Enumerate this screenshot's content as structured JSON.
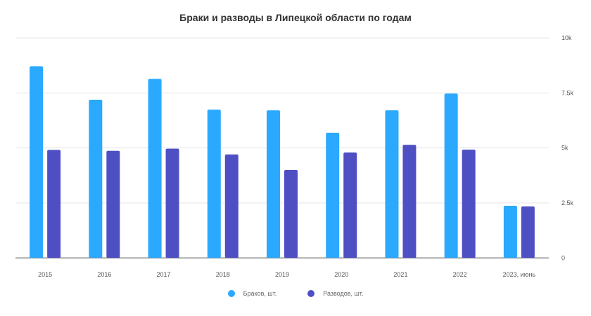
{
  "chart_data": {
    "type": "bar",
    "title": "Браки и разводы в Липецкой области по годам",
    "categories": [
      "2015",
      "2016",
      "2017",
      "2018",
      "2019",
      "2020",
      "2021",
      "2022",
      "2023, июнь"
    ],
    "series": [
      {
        "name": "Браков, шт.",
        "color": "#2aa9ff",
        "values": [
          8710,
          7190,
          8140,
          6740,
          6710,
          5690,
          6710,
          7470,
          2370
        ]
      },
      {
        "name": "Разводов, шт.",
        "color": "#4f4fc4",
        "values": [
          4910,
          4870,
          4970,
          4700,
          4000,
          4790,
          5140,
          4920,
          2340
        ]
      }
    ],
    "ylim": [
      0,
      10000
    ],
    "yticks": [
      {
        "v": 0,
        "label": "0"
      },
      {
        "v": 2500,
        "label": "2.5k"
      },
      {
        "v": 5000,
        "label": "5k"
      },
      {
        "v": 7500,
        "label": "7.5k"
      },
      {
        "v": 10000,
        "label": "10k"
      }
    ],
    "grid": true,
    "y_axis_side": "right",
    "legend": "bottom"
  }
}
